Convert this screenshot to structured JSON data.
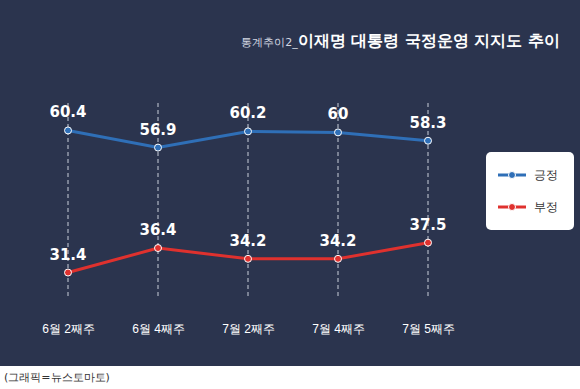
{
  "chart_data": {
    "type": "line",
    "title": "통계추이2_이재명 대통령 국정운영 지지도 추이",
    "caption": "(그래픽=뉴스토마토)",
    "categories": [
      "6월 2째주",
      "6월 4째주",
      "7월 2째주",
      "7월 4째주",
      "7월 5째주"
    ],
    "series": [
      {
        "name": "긍정",
        "color": "#2f6fb7",
        "marker": "circle",
        "line_style": "solid",
        "values": [
          60.4,
          56.9,
          60.2,
          60.0,
          58.3
        ]
      },
      {
        "name": "부정",
        "color": "#df312e",
        "marker": "circle",
        "line_style": "solid",
        "values": [
          31.4,
          36.4,
          34.2,
          34.2,
          37.5
        ]
      }
    ],
    "ylim": [
      26,
      66
    ],
    "grid": false,
    "legend": "right",
    "data_labels": true,
    "tick_labels": "x"
  }
}
